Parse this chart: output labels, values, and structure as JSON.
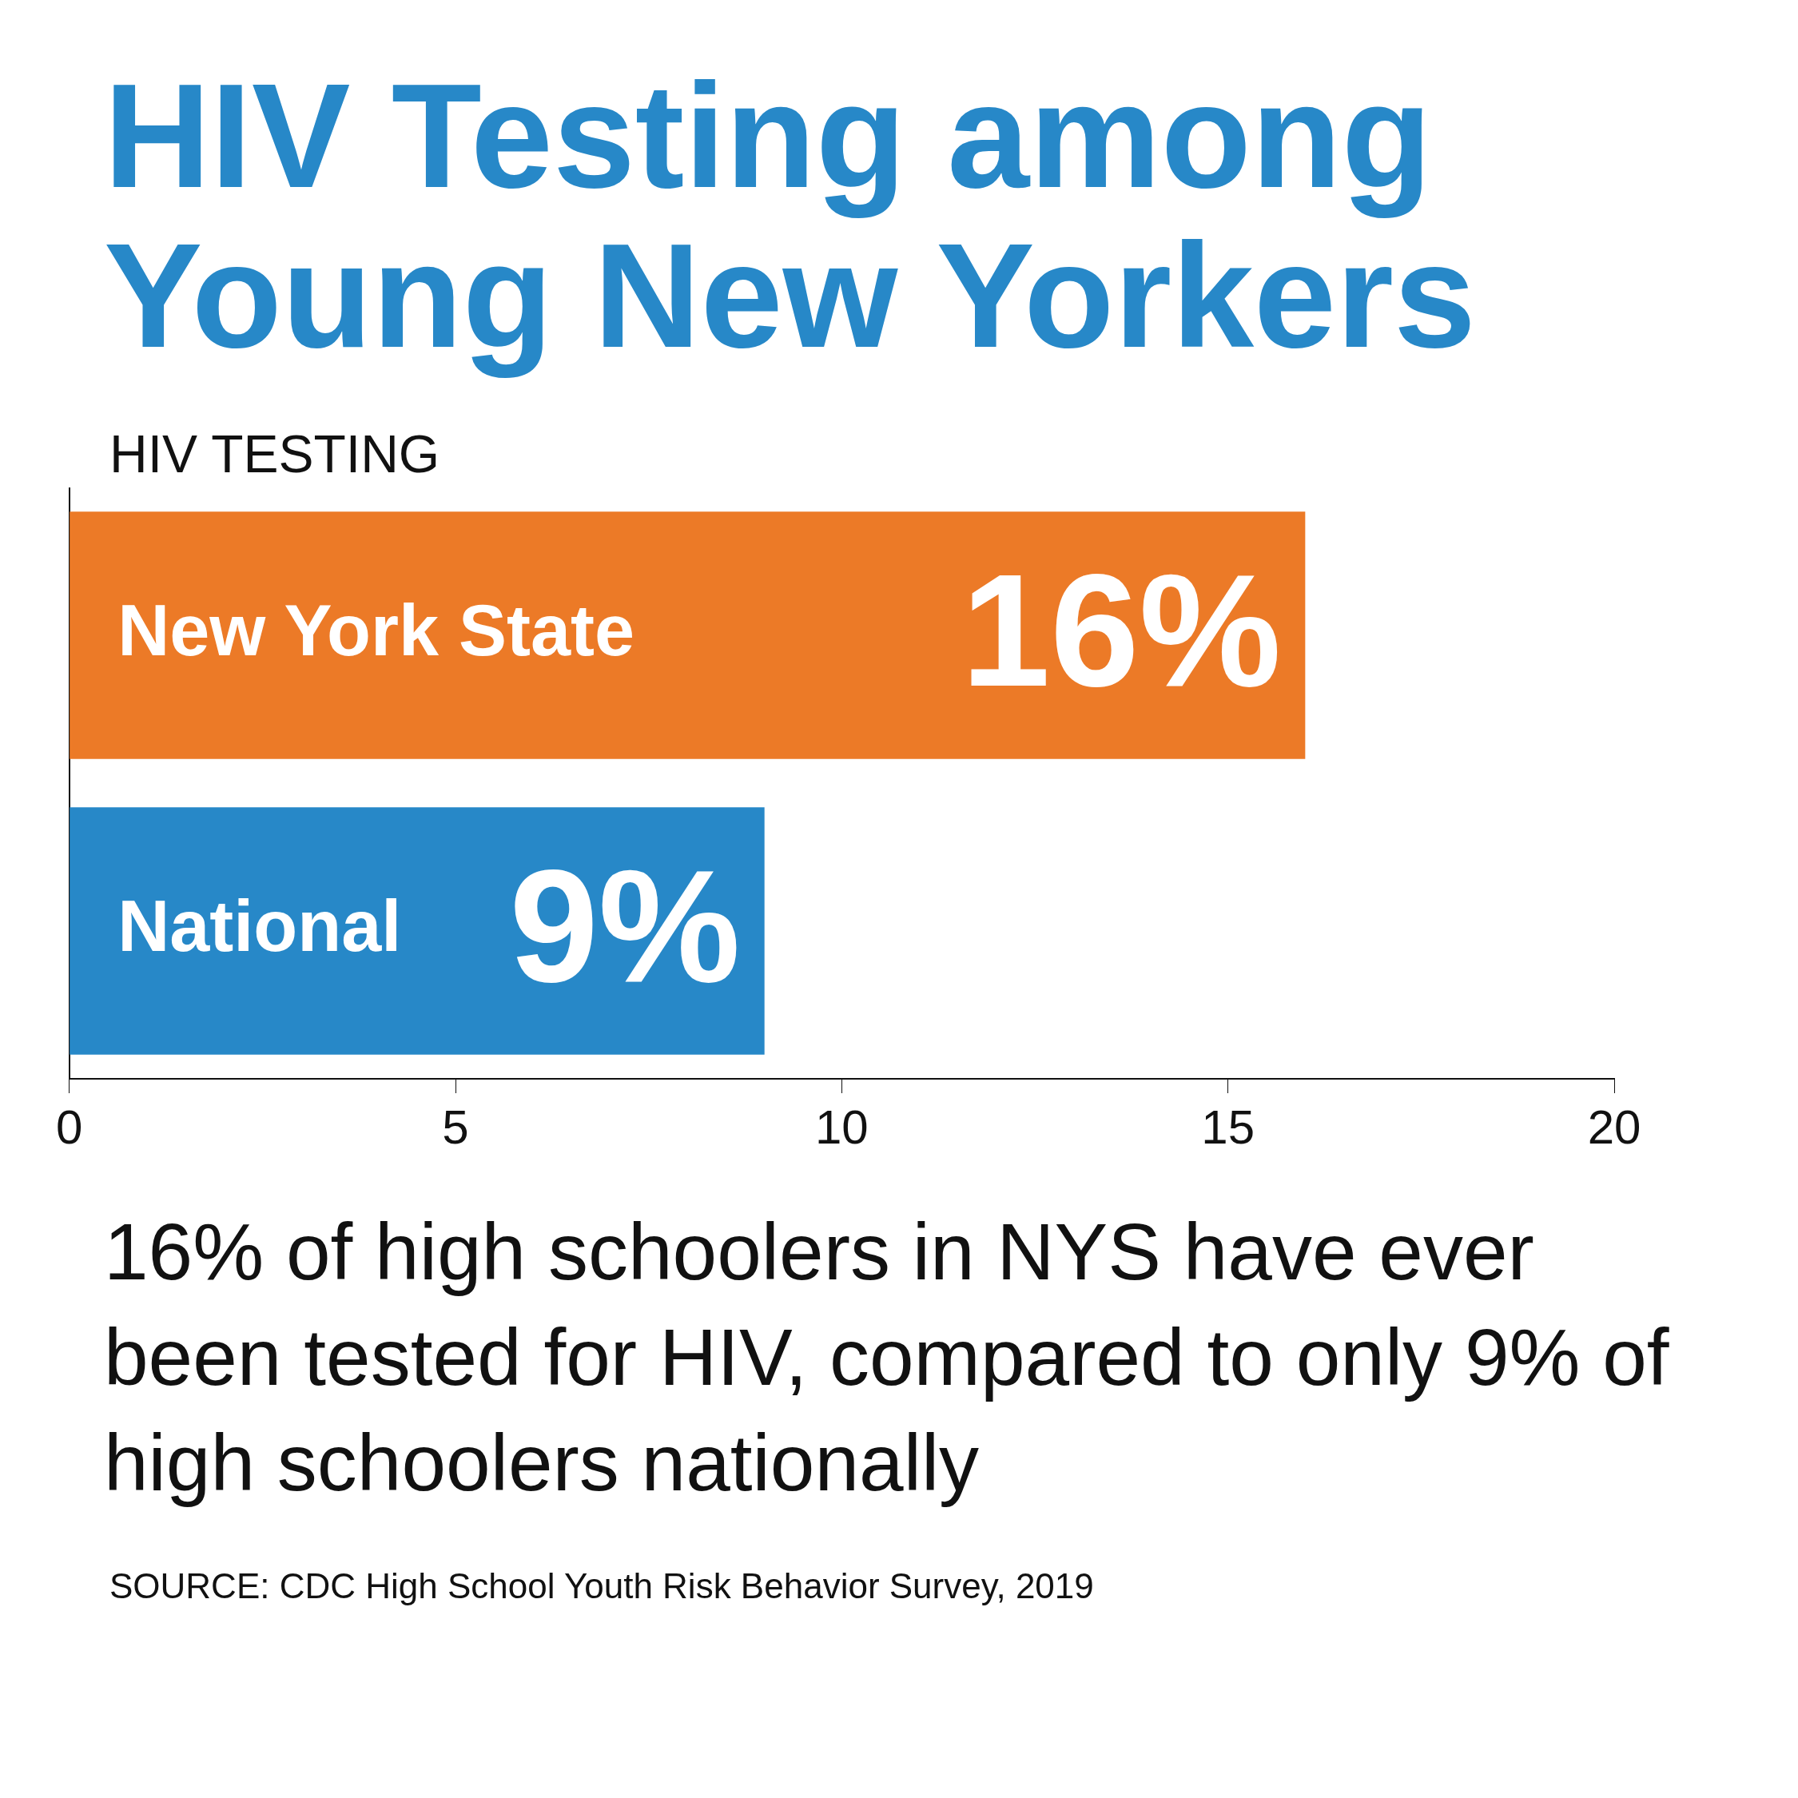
{
  "chart_data": {
    "type": "bar",
    "orientation": "horizontal",
    "title": "HIV Testing among Young New Yorkers",
    "subtitle": "HIV TESTING",
    "categories": [
      "New York State",
      "National"
    ],
    "values": [
      16,
      9
    ],
    "colors": [
      "#ec7a27",
      "#2788c8"
    ],
    "value_labels": [
      "16%",
      "9%"
    ],
    "xlim": [
      0,
      20
    ],
    "xticks": [
      0,
      5,
      10,
      15,
      20
    ],
    "grid": false,
    "legend": false,
    "annotations": [
      "16% of high schoolers in NYS have ever been tested for HIV, compared to only 9% of high schoolers nationally",
      "SOURCE: CDC High School Youth Risk Behavior Survey, 2019"
    ]
  }
}
